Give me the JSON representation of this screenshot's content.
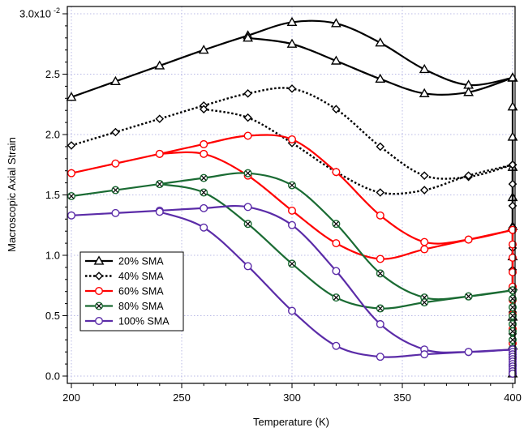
{
  "chart_data": {
    "type": "line",
    "title": "",
    "xlabel": "Temperature (K)",
    "ylabel": "Macroscopic Axial Strain",
    "xlim": [
      200,
      400
    ],
    "ylim": [
      0,
      0.03
    ],
    "x_ticks": [
      200,
      250,
      300,
      350,
      400
    ],
    "x_tick_labels": [
      "200",
      "250",
      "300",
      "350",
      "400"
    ],
    "y_ticks": [
      0,
      0.005,
      0.01,
      0.015,
      0.02,
      0.025,
      0.03
    ],
    "y_tick_labels": [
      "0.0",
      "0.5",
      "1.0",
      "1.5",
      "2.0",
      "2.5",
      "3.0x10"
    ],
    "y_exponent_label": "-2",
    "grid": true,
    "grid_style": "dotted",
    "legend_position": "lower-left",
    "series": [
      {
        "name": "20% SMA",
        "color": "#000000",
        "line_style": "solid",
        "marker": "triangle",
        "heating": {
          "x": [
            200,
            220,
            240,
            260,
            280,
            300,
            320,
            340,
            360,
            380,
            400
          ],
          "y": [
            0.0231,
            0.0244,
            0.0257,
            0.027,
            0.0282,
            0.0293,
            0.0292,
            0.0276,
            0.0254,
            0.0241,
            0.0247
          ]
        },
        "cooling": {
          "x": [
            400,
            380,
            360,
            340,
            320,
            300,
            280
          ],
          "y": [
            0.0247,
            0.0235,
            0.0234,
            0.0246,
            0.0261,
            0.0275,
            0.028
          ]
        },
        "vertical_x": 400,
        "vertical_y": [
          0.0247,
          0.0223,
          0.0198,
          0.0173,
          0.0148,
          0.0124,
          0.0099,
          0.0074,
          0.0049,
          0.0025,
          0.0002
        ]
      },
      {
        "name": "40% SMA",
        "color": "#000000",
        "line_style": "dotted",
        "marker": "diamond",
        "heating": {
          "x": [
            200,
            220,
            240,
            260,
            280,
            300,
            320,
            340,
            360,
            380,
            400
          ],
          "y": [
            0.0191,
            0.0202,
            0.0213,
            0.0224,
            0.0234,
            0.0238,
            0.0221,
            0.019,
            0.0166,
            0.0165,
            0.0175
          ]
        },
        "cooling": {
          "x": [
            400,
            380,
            360,
            340,
            320,
            300,
            280,
            260
          ],
          "y": [
            0.0175,
            0.0166,
            0.0154,
            0.0152,
            0.0169,
            0.0193,
            0.0214,
            0.0221
          ]
        },
        "vertical_x": 400,
        "vertical_y": [
          0.0175,
          0.0159,
          0.0141,
          0.0123,
          0.0106,
          0.0088,
          0.007,
          0.0053,
          0.0035,
          0.0018,
          0.0002
        ]
      },
      {
        "name": "60% SMA",
        "color": "#ff0000",
        "line_style": "solid",
        "marker": "circle",
        "heating": {
          "x": [
            200,
            220,
            240,
            260,
            280,
            300,
            320,
            340,
            360,
            380,
            400
          ],
          "y": [
            0.0168,
            0.0176,
            0.0184,
            0.0192,
            0.0199,
            0.0196,
            0.0169,
            0.0133,
            0.0111,
            0.0113,
            0.0121
          ]
        },
        "cooling": {
          "x": [
            400,
            380,
            360,
            340,
            320,
            300,
            280,
            260,
            240
          ],
          "y": [
            0.0121,
            0.0113,
            0.0105,
            0.0097,
            0.011,
            0.0137,
            0.0166,
            0.0184,
            0.0184
          ]
        },
        "vertical_x": 400,
        "vertical_y": [
          0.0121,
          0.0109,
          0.0098,
          0.0086,
          0.0074,
          0.0063,
          0.0051,
          0.0039,
          0.0027,
          0.0015,
          0.0002
        ]
      },
      {
        "name": "80% SMA",
        "color": "#1a6b33",
        "line_style": "solid",
        "marker": "circle-x",
        "heating": {
          "x": [
            200,
            220,
            240,
            260,
            280,
            300,
            320,
            340,
            360,
            380,
            400
          ],
          "y": [
            0.0149,
            0.0154,
            0.0159,
            0.0164,
            0.0168,
            0.0158,
            0.0126,
            0.0085,
            0.0065,
            0.0066,
            0.0071
          ]
        },
        "cooling": {
          "x": [
            400,
            380,
            360,
            340,
            320,
            300,
            280,
            260,
            240
          ],
          "y": [
            0.0071,
            0.0066,
            0.0061,
            0.0056,
            0.0065,
            0.0093,
            0.0126,
            0.0152,
            0.0159
          ]
        },
        "vertical_x": 400,
        "vertical_y": [
          0.0071,
          0.0064,
          0.0057,
          0.005,
          0.0043,
          0.0037,
          0.003,
          0.0023,
          0.0016,
          0.0009,
          0.0002
        ]
      },
      {
        "name": "100% SMA",
        "color": "#5b2ca8",
        "line_style": "solid",
        "marker": "circle",
        "heating": {
          "x": [
            200,
            220,
            240,
            260,
            280,
            300,
            320,
            340,
            360,
            380,
            400
          ],
          "y": [
            0.0133,
            0.0135,
            0.0137,
            0.0139,
            0.014,
            0.0125,
            0.0087,
            0.0043,
            0.0022,
            0.002,
            0.0022
          ]
        },
        "cooling": {
          "x": [
            400,
            380,
            360,
            340,
            320,
            300,
            280,
            260,
            240
          ],
          "y": [
            0.0022,
            0.002,
            0.0018,
            0.0016,
            0.0025,
            0.0054,
            0.0091,
            0.0123,
            0.0136
          ]
        },
        "vertical_x": 400,
        "vertical_y": [
          0.0022,
          0.002,
          0.0018,
          0.0016,
          0.0014,
          0.0012,
          0.001,
          0.0008,
          0.0006,
          0.0004,
          0.0002
        ]
      }
    ]
  }
}
